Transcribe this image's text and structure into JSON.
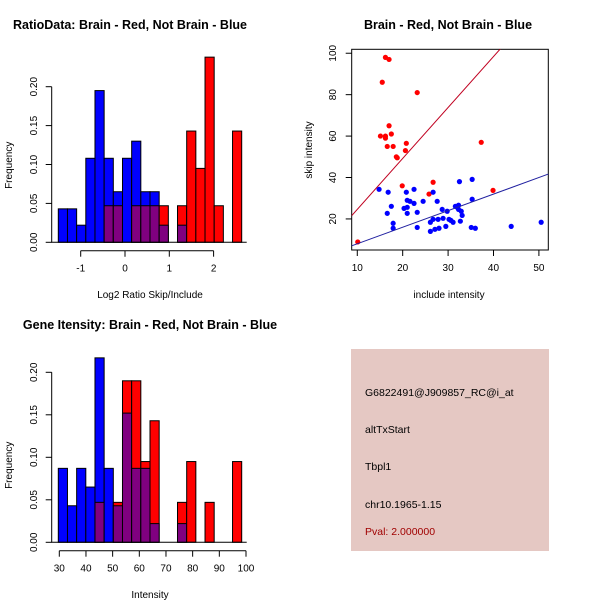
{
  "colors": {
    "red": "#ff0000",
    "blue": "#0000ff",
    "overlap": "#800080",
    "red_line": "#c00020",
    "blue_line": "#2020a0",
    "info_bg": "#e5c8c3",
    "pval_text": "#a00000"
  },
  "chart_data": [
    {
      "type": "bar",
      "subtype": "overlaid-histogram",
      "title": "RatioData: Brain - Red, Not Brain - Blue",
      "xlabel": "Log2 Ratio Skip/Include",
      "ylabel": "Frequency",
      "bin_start": -1.51,
      "bin_width": 0.207,
      "xticks": [
        -1,
        0,
        1,
        2
      ],
      "xtick_labels": [
        "-1",
        "0",
        "1",
        "2"
      ],
      "yticks": [
        0,
        0.05,
        0.1,
        0.15,
        0.2
      ],
      "ytick_labels": [
        "0.00",
        "0.05",
        "0.10",
        "0.15",
        "0.20"
      ],
      "ylim": [
        0,
        0.24
      ],
      "series": [
        {
          "name": "Not Brain",
          "color": "blue",
          "values": [
            0.043,
            0.043,
            0.022,
            0.108,
            0.195,
            0.108,
            0.065,
            0.108,
            0.13,
            0.065,
            0.065,
            0.022,
            0,
            0.022,
            0,
            0,
            0,
            0,
            0,
            0
          ]
        },
        {
          "name": "Brain",
          "color": "red",
          "values": [
            0,
            0,
            0,
            0,
            0,
            0.047,
            0.047,
            0,
            0.047,
            0.047,
            0.047,
            0.047,
            0,
            0.047,
            0.143,
            0.095,
            0.238,
            0.047,
            0,
            0.143
          ]
        }
      ]
    },
    {
      "type": "scatter",
      "title": "Brain - Red, Not Brain - Blue",
      "xlabel": "include intensity",
      "ylabel": "skip intensity",
      "xlim": [
        8.77,
        52.07
      ],
      "ylim": [
        5,
        101.9
      ],
      "xticks": [
        10,
        20,
        30,
        40,
        50
      ],
      "xtick_labels": [
        "10",
        "20",
        "30",
        "40",
        "50"
      ],
      "yticks": [
        20,
        40,
        60,
        80,
        100
      ],
      "ytick_labels": [
        "20",
        "40",
        "60",
        "80",
        "100"
      ],
      "series": [
        {
          "name": "Brain",
          "color": "red",
          "fit_slope": 2.46,
          "points": [
            [
              16.2,
              98
            ],
            [
              17.0,
              97
            ],
            [
              15.5,
              86
            ],
            [
              23.2,
              81
            ],
            [
              17.0,
              65
            ],
            [
              15.1,
              60
            ],
            [
              16.2,
              60
            ],
            [
              16.2,
              59
            ],
            [
              17.5,
              61
            ],
            [
              16.6,
              55
            ],
            [
              17.9,
              55
            ],
            [
              20.8,
              56.5
            ],
            [
              20.6,
              53
            ],
            [
              18.6,
              50
            ],
            [
              18.8,
              49.5
            ],
            [
              37.3,
              57
            ],
            [
              19.9,
              36
            ],
            [
              26.7,
              37.7
            ],
            [
              25.8,
              32
            ],
            [
              39.9,
              33.8
            ],
            [
              10.1,
              8.9
            ]
          ]
        },
        {
          "name": "Not Brain",
          "color": "blue",
          "fit_slope": 0.8,
          "points": [
            [
              14.8,
              34.3
            ],
            [
              16.8,
              32.9
            ],
            [
              17.5,
              26.1
            ],
            [
              16.6,
              22.7
            ],
            [
              17.9,
              17.9
            ],
            [
              17.9,
              15.5
            ],
            [
              20.8,
              32.9
            ],
            [
              22.5,
              34.3
            ],
            [
              21.0,
              29
            ],
            [
              21.6,
              28.5
            ],
            [
              22.5,
              27.5
            ],
            [
              24.5,
              28.5
            ],
            [
              20.3,
              25.1
            ],
            [
              21.0,
              25.6
            ],
            [
              21.0,
              22.7
            ],
            [
              23.2,
              23.2
            ],
            [
              23.2,
              15.9
            ],
            [
              26.7,
              32.9
            ],
            [
              27.6,
              28.5
            ],
            [
              28.7,
              24.6
            ],
            [
              29.8,
              23.7
            ],
            [
              26.1,
              18.4
            ],
            [
              26.1,
              14
            ],
            [
              26.7,
              19.8
            ],
            [
              27.1,
              15
            ],
            [
              28.0,
              15.5
            ],
            [
              27.8,
              19.8
            ],
            [
              28.9,
              20.3
            ],
            [
              29.5,
              16.4
            ],
            [
              30.2,
              19.8
            ],
            [
              31.1,
              18.4
            ],
            [
              31.6,
              26.1
            ],
            [
              32.3,
              26.6
            ],
            [
              32.5,
              38
            ],
            [
              32.9,
              23.7
            ],
            [
              33.1,
              21.7
            ],
            [
              32.7,
              18.9
            ],
            [
              35.3,
              39.1
            ],
            [
              35.3,
              29.5
            ],
            [
              35.1,
              15.9
            ],
            [
              36.0,
              15.5
            ],
            [
              43.9,
              16.4
            ],
            [
              50.5,
              18.4
            ],
            [
              30.6,
              19.3
            ],
            [
              32.0,
              25.6
            ],
            [
              32.3,
              24.6
            ]
          ]
        }
      ]
    },
    {
      "type": "bar",
      "subtype": "overlaid-histogram",
      "title": "Gene Itensity: Brain - Red, Not Brain - Blue",
      "xlabel": "Intensity",
      "ylabel": "Frequency",
      "bin_start": 29.6,
      "bin_width": 3.47,
      "xticks": [
        30,
        40,
        50,
        60,
        70,
        80,
        90,
        100
      ],
      "xtick_labels": [
        "30",
        "40",
        "50",
        "60",
        "70",
        "80",
        "90",
        "100"
      ],
      "yticks": [
        0,
        0.05,
        0.1,
        0.15,
        0.2
      ],
      "ytick_labels": [
        "0.00",
        "0.05",
        "0.10",
        "0.15",
        "0.20"
      ],
      "ylim": [
        0,
        0.22
      ],
      "series": [
        {
          "name": "Not Brain",
          "color": "blue",
          "values": [
            0.087,
            0.043,
            0.087,
            0.065,
            0.217,
            0.087,
            0.043,
            0.152,
            0.087,
            0.087,
            0.022,
            0,
            0,
            0.022,
            0,
            0,
            0,
            0,
            0,
            0
          ]
        },
        {
          "name": "Brain",
          "color": "red",
          "values": [
            0,
            0,
            0,
            0,
            0.047,
            0,
            0.047,
            0.19,
            0.19,
            0.095,
            0.143,
            0,
            0,
            0.047,
            0.095,
            0,
            0.047,
            0,
            0,
            0.095
          ]
        }
      ]
    }
  ],
  "info": {
    "probe_id": "G6822491@J909857_RC@i_at",
    "event_type": "altTxStart",
    "gene": "Tbpl1",
    "location": "chr10.1965-1.15",
    "pval": "Pval: 2.000000"
  }
}
